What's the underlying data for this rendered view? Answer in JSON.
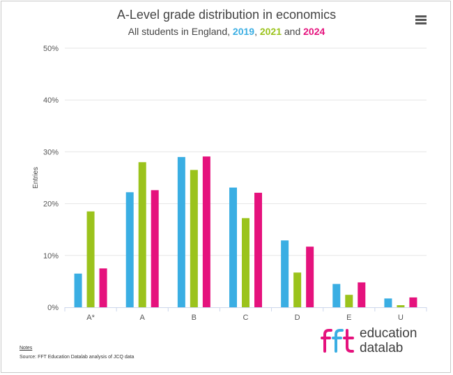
{
  "header": {
    "title": "A-Level grade distribution in economics",
    "subtitle_prefix": "All students in England, ",
    "sep1": ", ",
    "sep2": " and ",
    "year1": "2019",
    "year2": "2021",
    "year3": "2024"
  },
  "menu": {
    "icon": "hamburger-menu-icon"
  },
  "colors": {
    "s2019": "#3aaee3",
    "s2021": "#9bc31c",
    "s2024": "#e5127d"
  },
  "chart_data": {
    "type": "bar",
    "title": "A-Level grade distribution in economics",
    "subtitle": "All students in England, 2019, 2021 and 2024",
    "xlabel": "",
    "ylabel": "Entries",
    "ylim": [
      0,
      50
    ],
    "yticks": [
      "0%",
      "10%",
      "20%",
      "30%",
      "40%",
      "50%"
    ],
    "yticks_values": [
      0,
      10,
      20,
      30,
      40,
      50
    ],
    "grid": true,
    "categories": [
      "A*",
      "A",
      "B",
      "C",
      "D",
      "E",
      "U"
    ],
    "series": [
      {
        "name": "2019",
        "color": "#3aaee3",
        "values": [
          6.5,
          22.2,
          29.0,
          23.1,
          12.9,
          4.5,
          1.7
        ]
      },
      {
        "name": "2021",
        "color": "#9bc31c",
        "values": [
          18.5,
          28.0,
          26.5,
          17.2,
          6.7,
          2.4,
          0.4
        ]
      },
      {
        "name": "2024",
        "color": "#e5127d",
        "values": [
          7.5,
          22.6,
          29.1,
          22.1,
          11.7,
          4.8,
          1.9
        ]
      }
    ]
  },
  "footer": {
    "notes": "Notes",
    "source": "Source: FFT Education Datalab analysis of JCQ data"
  },
  "logo": {
    "mark": "fft",
    "line1": "education",
    "line2": "datalab"
  }
}
